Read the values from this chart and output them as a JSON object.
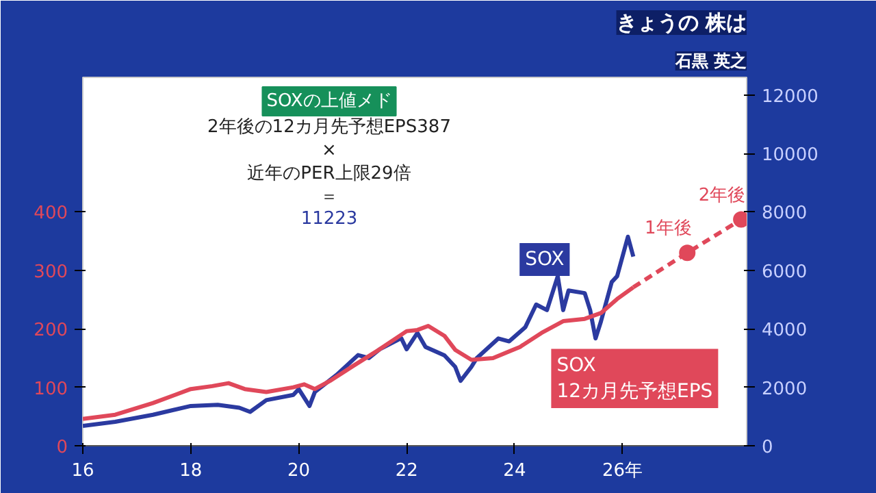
{
  "chart_data": {
    "type": "line",
    "title": "きょうの 株は",
    "subtitle": "石黒 英之",
    "xlim": [
      16,
      28.3
    ],
    "xticks": [
      16,
      18,
      20,
      22,
      24,
      {
        "value": 26,
        "label": "26年"
      }
    ],
    "ylim": [
      0,
      630
    ],
    "yticks": [
      0,
      100,
      200,
      300,
      400
    ],
    "y2lim": [
      0,
      12600
    ],
    "y2ticks": [
      0,
      2000,
      4000,
      6000,
      8000,
      10000,
      12000
    ],
    "grid": false,
    "line_style": "solid",
    "series": [
      {
        "name": "SOX",
        "color": "#2b3aa0",
        "axis": "y2",
        "x": [
          16.0,
          16.6,
          17.3,
          18.0,
          18.5,
          18.9,
          19.1,
          19.4,
          19.9,
          20.0,
          20.2,
          20.3,
          20.7,
          21.1,
          21.3,
          21.5,
          21.9,
          22.0,
          22.2,
          22.35,
          22.7,
          22.9,
          23.0,
          23.2,
          23.3,
          23.7,
          23.9,
          24.2,
          24.4,
          24.6,
          24.8,
          24.9,
          25.0,
          25.3,
          25.4,
          25.5,
          25.6,
          25.8,
          25.9,
          26.1,
          26.2
        ],
        "values": [
          680,
          820,
          1060,
          1360,
          1400,
          1300,
          1160,
          1560,
          1740,
          1940,
          1360,
          1840,
          2420,
          3100,
          3000,
          3300,
          3680,
          3300,
          3860,
          3380,
          3090,
          2700,
          2220,
          2700,
          3000,
          3670,
          3570,
          4060,
          4830,
          4640,
          5800,
          4640,
          5310,
          5220,
          4640,
          3670,
          4250,
          5600,
          5800,
          7150,
          6470
        ]
      },
      {
        "name": "SOX\n12カ月先予想EPS",
        "color": "#e0485a",
        "x": [
          16.0,
          16.6,
          17.3,
          18.0,
          18.4,
          18.7,
          19.0,
          19.4,
          19.9,
          20.1,
          20.3,
          20.6,
          21.0,
          21.5,
          22.0,
          22.2,
          22.4,
          22.7,
          22.9,
          23.2,
          23.6,
          24.1,
          24.5,
          24.9,
          25.3,
          25.6,
          25.9,
          26.2
        ],
        "values": [
          46,
          53,
          73,
          97,
          102,
          107,
          97,
          92,
          100,
          105,
          97,
          112,
          136,
          165,
          196,
          198,
          205,
          188,
          164,
          147,
          150,
          169,
          193,
          213,
          217,
          227,
          251,
          271
        ]
      },
      {
        "color": "#e0485a",
        "line_style": "dashed",
        "x": [
          26.2,
          27.2,
          28.2
        ],
        "values": [
          271,
          330,
          387
        ]
      },
      {
        "type": "scatter",
        "color": "#e0485a",
        "marker": "circle",
        "x": [
          27.2,
          28.2
        ],
        "values": [
          330,
          387
        ]
      }
    ],
    "annotations": [
      {
        "text": "1年後",
        "x": 27.2,
        "y": 330
      },
      {
        "text": "2年後",
        "x": 28.2,
        "y": 387
      },
      "SOXの上値メド",
      "2年後の12カ月先予想EPS387",
      "×",
      "近年のPER上限29倍",
      "＝",
      "11223"
    ]
  }
}
